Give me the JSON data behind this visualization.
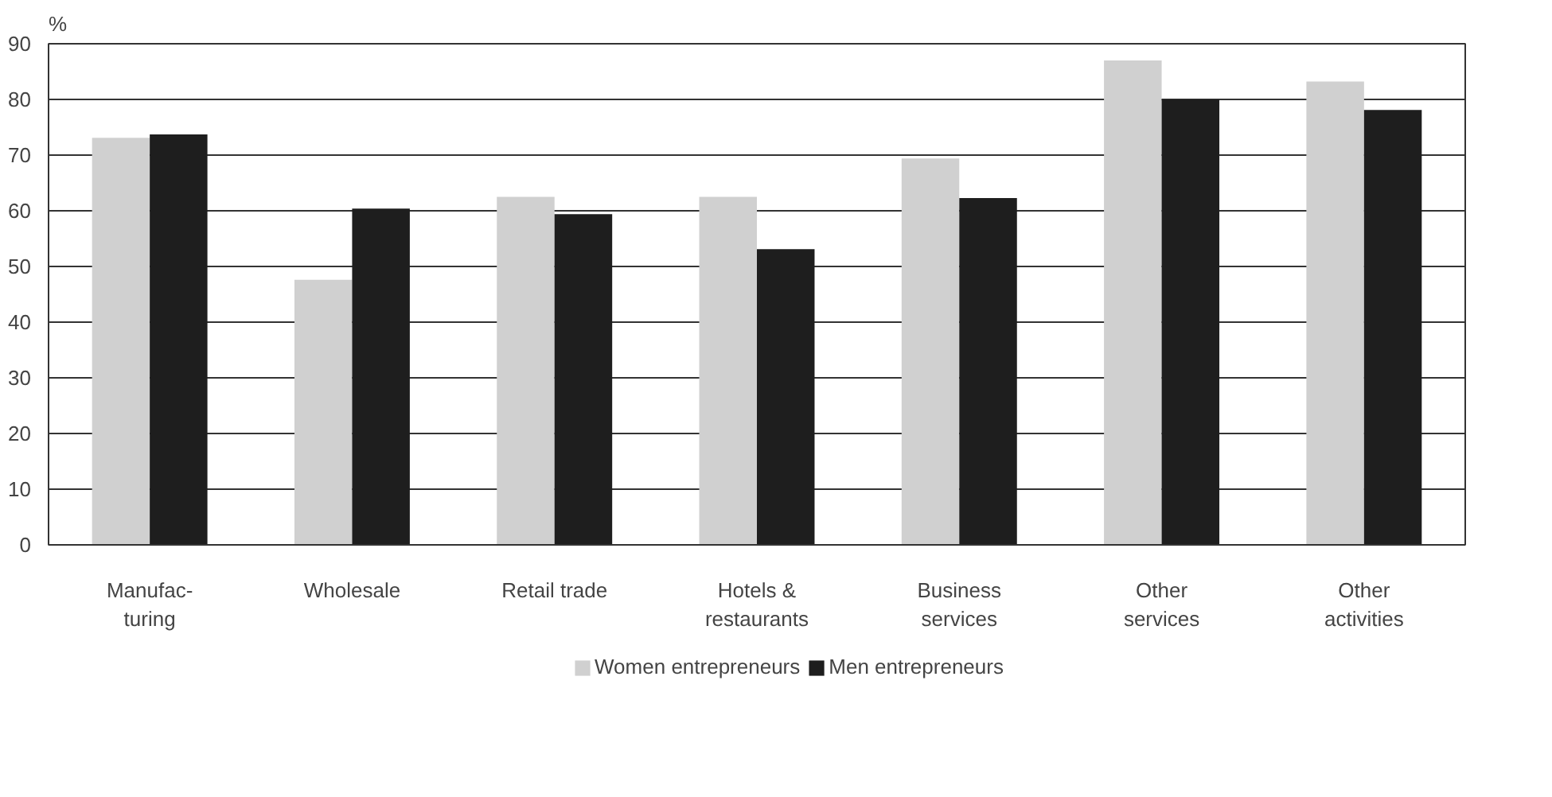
{
  "chart_data": {
    "type": "bar",
    "ylabel": "%",
    "categories": [
      "Manufac-\nturing",
      "Wholesale",
      "Retail trade",
      "Hotels &\nrestaurants",
      "Business\nservices",
      "Other\nservices",
      "Other\nactivities"
    ],
    "series": [
      {
        "name": "Women entrepreneurs",
        "color": "#d0d0d0",
        "values": [
          73.1,
          47.6,
          62.5,
          62.5,
          69.4,
          87.0,
          83.2
        ]
      },
      {
        "name": "Men entrepreneurs",
        "color": "#1e1e1e",
        "values": [
          73.7,
          60.4,
          59.4,
          53.1,
          62.3,
          80.0,
          78.1
        ]
      }
    ],
    "ylim": [
      0,
      90
    ],
    "yticks": [
      0,
      10,
      20,
      30,
      40,
      50,
      60,
      70,
      80,
      90
    ],
    "grid": "y",
    "legend": "bottom"
  }
}
